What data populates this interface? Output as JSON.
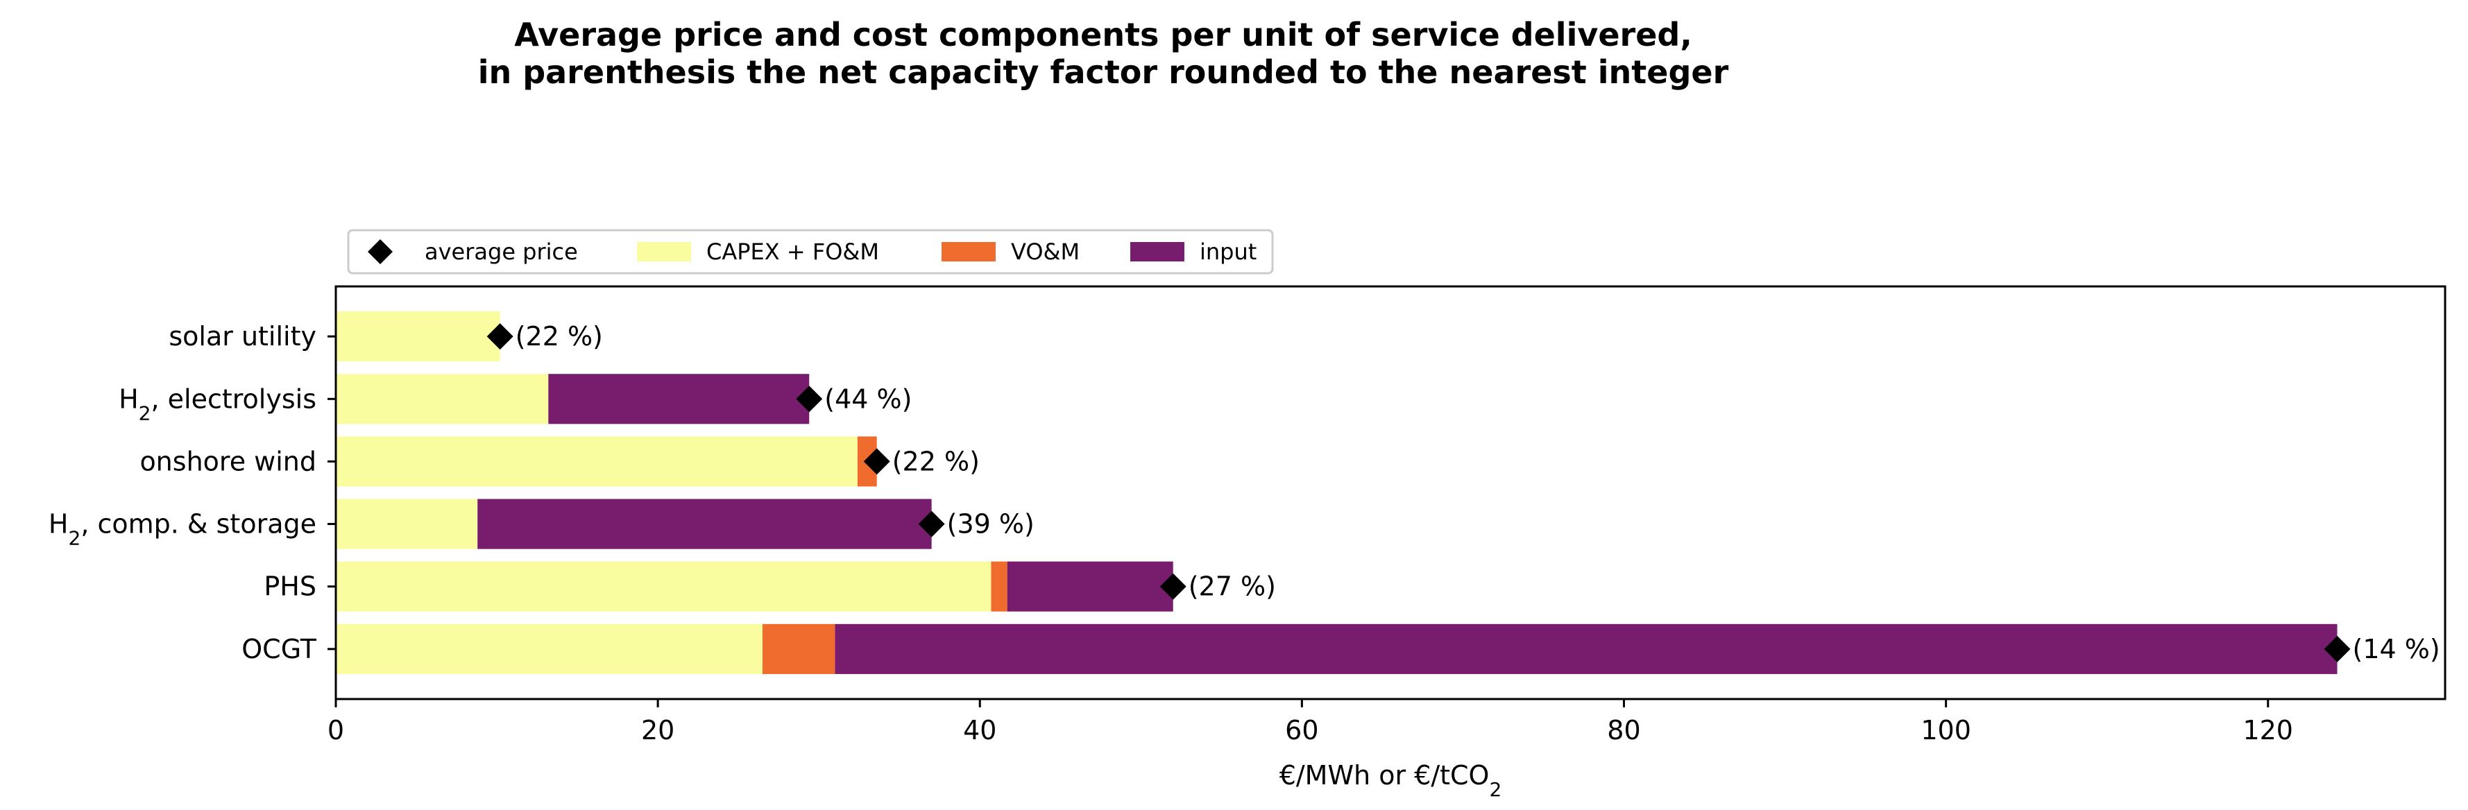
{
  "chart_data": {
    "type": "bar",
    "orientation": "horizontal",
    "stacked": true,
    "title": "Average price and cost components per unit of service delivered,",
    "subtitle": "in parenthesis the net capacity factor rounded to the nearest integer",
    "xlabel": "€/MWh or €/tCO",
    "xlabel_sub": "2",
    "ylabel": "",
    "xlim": [
      0,
      131
    ],
    "xticks": [
      0,
      20,
      40,
      60,
      80,
      100,
      120
    ],
    "grid": false,
    "legend_position": "top-left",
    "categories": [
      {
        "label": "solar utility",
        "sub": "",
        "suffix": ""
      },
      {
        "label": "H",
        "sub": "2",
        "suffix": ", electrolysis"
      },
      {
        "label": "onshore wind",
        "sub": "",
        "suffix": ""
      },
      {
        "label": "H",
        "sub": "2",
        "suffix": ", comp. & storage"
      },
      {
        "label": "PHS",
        "sub": "",
        "suffix": ""
      },
      {
        "label": "OCGT",
        "sub": "",
        "suffix": ""
      }
    ],
    "series": [
      {
        "name": "CAPEX + FO&M",
        "color": "#fafd9f",
        "values": [
          10.2,
          13.2,
          32.4,
          8.8,
          40.7,
          26.5
        ]
      },
      {
        "name": "VO&M",
        "color": "#f06b2e",
        "values": [
          0,
          0,
          1.2,
          0,
          1.0,
          4.5
        ]
      },
      {
        "name": "input",
        "color": "#781c6d",
        "values": [
          0,
          16.2,
          0,
          28.2,
          10.3,
          93.3
        ]
      }
    ],
    "average_price": {
      "name": "average price",
      "color": "#000000",
      "values": [
        10.2,
        29.4,
        33.6,
        37.0,
        52.0,
        124.3
      ],
      "annotations": [
        "(22 %)",
        "(44 %)",
        "(22 %)",
        "(39 %)",
        "(27 %)",
        "(14 %)"
      ]
    }
  }
}
